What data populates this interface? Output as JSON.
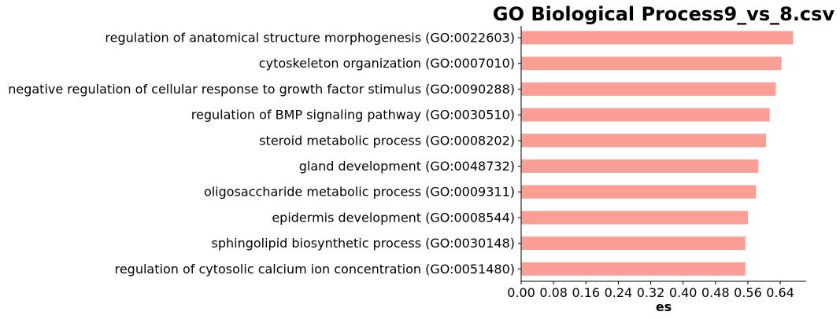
{
  "chart_data": {
    "type": "bar",
    "orientation": "horizontal",
    "title": "GO Biological Process9_vs_8.csv",
    "xlabel": "es",
    "ylabel": "",
    "xlim": [
      0,
      0.704
    ],
    "xticks": [
      0.0,
      0.08,
      0.16,
      0.24,
      0.32,
      0.4,
      0.48,
      0.56,
      0.64
    ],
    "xtick_labels": [
      "0.00",
      "0.08",
      "0.16",
      "0.24",
      "0.32",
      "0.40",
      "0.48",
      "0.56",
      "0.64"
    ],
    "bar_color": "#fb9f94",
    "grid": false,
    "categories": [
      "regulation of anatomical structure morphogenesis (GO:0022603)",
      "cytoskeleton organization (GO:0007010)",
      "negative regulation of cellular response to growth factor stimulus (GO:0090288)",
      "regulation of BMP signaling pathway (GO:0030510)",
      "steroid metabolic process (GO:0008202)",
      "gland development (GO:0048732)",
      "oligosaccharide metabolic process (GO:0009311)",
      "epidermis development (GO:0008544)",
      "sphingolipid biosynthetic process (GO:0030148)",
      "regulation of cytosolic calcium ion concentration (GO:0051480)"
    ],
    "values": [
      0.672,
      0.643,
      0.629,
      0.614,
      0.605,
      0.586,
      0.58,
      0.56,
      0.554,
      0.554
    ]
  }
}
